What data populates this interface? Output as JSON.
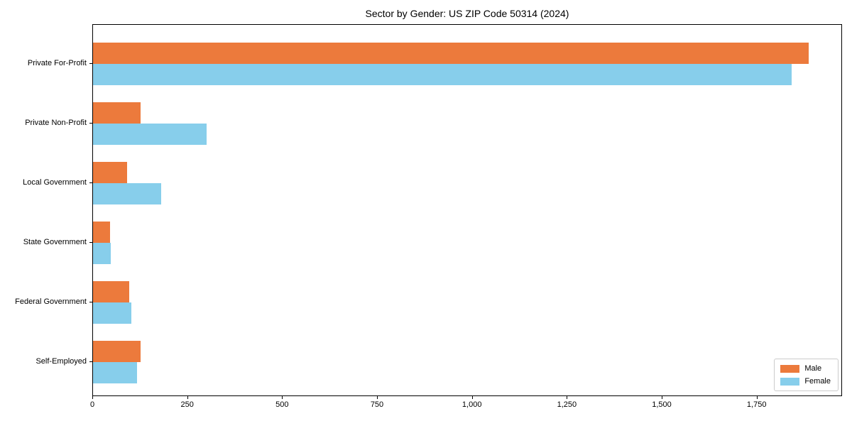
{
  "chart_data": {
    "type": "bar",
    "orientation": "horizontal",
    "title": "Sector by Gender: US ZIP Code 50314 (2024)",
    "categories": [
      "Private For-Profit",
      "Private Non-Profit",
      "Local Government",
      "State Government",
      "Federal Government",
      "Self-Employed"
    ],
    "series": [
      {
        "name": "Male",
        "color": "#ec7a3c",
        "values": [
          1885,
          125,
          90,
          44,
          95,
          125
        ]
      },
      {
        "name": "Female",
        "color": "#87ceeb",
        "values": [
          1840,
          300,
          180,
          46,
          100,
          115
        ]
      }
    ],
    "xlabel": "",
    "ylabel": "",
    "xlim": [
      0,
      1975
    ],
    "xticks": [
      {
        "value": 0,
        "label": "0"
      },
      {
        "value": 250,
        "label": "250"
      },
      {
        "value": 500,
        "label": "500"
      },
      {
        "value": 750,
        "label": "750"
      },
      {
        "value": 1000,
        "label": "1,000"
      },
      {
        "value": 1250,
        "label": "1,250"
      },
      {
        "value": 1500,
        "label": "1,500"
      },
      {
        "value": 1750,
        "label": "1,750"
      }
    ],
    "grid": false,
    "legend": {
      "position": "lower right"
    }
  }
}
